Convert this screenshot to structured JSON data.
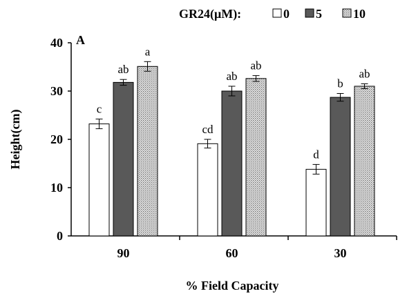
{
  "chart_data": {
    "type": "bar",
    "panel_label": "A",
    "legend_title": "GR24(μM):",
    "categories": [
      "90",
      "60",
      "30"
    ],
    "series": [
      {
        "name": "0",
        "values": [
          23.2,
          19.1,
          13.8
        ],
        "errors": [
          1.0,
          0.9,
          1.0
        ],
        "letters": [
          "c",
          "cd",
          "d"
        ],
        "fill": "#ffffff",
        "pattern": "none"
      },
      {
        "name": "5",
        "values": [
          31.8,
          30.0,
          28.7
        ],
        "errors": [
          0.6,
          1.0,
          0.8
        ],
        "letters": [
          "ab",
          "ab",
          "b"
        ],
        "fill": "#595959",
        "pattern": "none"
      },
      {
        "name": "10",
        "values": [
          35.1,
          32.6,
          31.0
        ],
        "errors": [
          1.0,
          0.6,
          0.5
        ],
        "letters": [
          "a",
          "ab",
          "ab"
        ],
        "fill": "#d9d9d9",
        "pattern": "dots"
      }
    ],
    "xlabel": "% Field Capacity",
    "ylabel": "Height(cm)",
    "ylim": [
      0,
      40
    ],
    "yticks": [
      0,
      10,
      20,
      30,
      40
    ],
    "grid": false,
    "legend_position": "top"
  }
}
